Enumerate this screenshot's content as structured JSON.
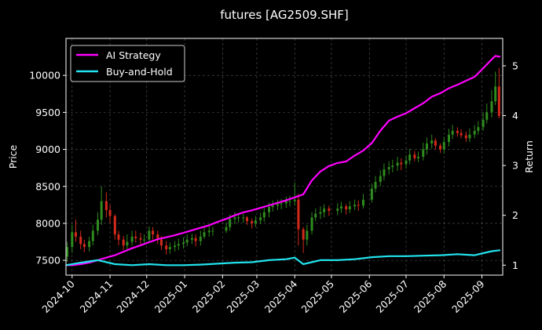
{
  "chart_data": {
    "type": "line",
    "title": "futures [AG2509.SHF]",
    "ylabel": "Price",
    "y2label": "Return",
    "xlim": [
      "2024-09-26",
      "2025-09-18"
    ],
    "ylim": [
      7300,
      10500
    ],
    "y2lim": [
      0.8,
      5.55
    ],
    "x_ticks": [
      "2024-10",
      "2024-11",
      "2024-12",
      "2025-01",
      "2025-02",
      "2025-03",
      "2025-04",
      "2025-05",
      "2025-06",
      "2025-07",
      "2025-08",
      "2025-09"
    ],
    "y_ticks": [
      7500,
      8000,
      8500,
      9000,
      9500,
      10000
    ],
    "y2_ticks": [
      1,
      2,
      3,
      4,
      5
    ],
    "grid": true,
    "legend_position": "top-left",
    "colors": {
      "background": "#000000",
      "axes": "#ffffff",
      "grid": "#555555",
      "up_candle": "#2e8b1e",
      "down_candle": "#d42a1c",
      "ai_strategy": "#ff00ff",
      "buy_and_hold": "#22e3ee"
    },
    "price_series": {
      "name": "AG2509.SHF",
      "x": [
        "2024-09-27",
        "2024-10-01",
        "2024-10-04",
        "2024-10-08",
        "2024-10-11",
        "2024-10-15",
        "2024-10-18",
        "2024-10-22",
        "2024-10-25",
        "2024-10-29",
        "2024-11-01",
        "2024-11-05",
        "2024-11-08",
        "2024-11-12",
        "2024-11-15",
        "2024-11-19",
        "2024-11-22",
        "2024-11-26",
        "2024-11-29",
        "2024-12-03",
        "2024-12-06",
        "2024-12-10",
        "2024-12-13",
        "2024-12-17",
        "2024-12-20",
        "2024-12-24",
        "2024-12-27",
        "2024-12-31",
        "2025-01-03",
        "2025-01-07",
        "2025-01-10",
        "2025-01-14",
        "2025-01-17",
        "2025-01-21",
        "2025-01-24",
        "2025-02-04",
        "2025-02-07",
        "2025-02-11",
        "2025-02-14",
        "2025-02-18",
        "2025-02-21",
        "2025-02-25",
        "2025-02-28",
        "2025-03-04",
        "2025-03-07",
        "2025-03-11",
        "2025-03-14",
        "2025-03-18",
        "2025-03-21",
        "2025-03-25",
        "2025-03-28",
        "2025-04-01",
        "2025-04-04",
        "2025-04-08",
        "2025-04-11",
        "2025-04-15",
        "2025-04-18",
        "2025-04-22",
        "2025-04-25",
        "2025-04-29",
        "2025-05-06",
        "2025-05-09",
        "2025-05-13",
        "2025-05-16",
        "2025-05-20",
        "2025-05-23",
        "2025-05-27",
        "2025-06-03",
        "2025-06-06",
        "2025-06-10",
        "2025-06-13",
        "2025-06-17",
        "2025-06-20",
        "2025-06-24",
        "2025-06-27",
        "2025-07-01",
        "2025-07-04",
        "2025-07-08",
        "2025-07-11",
        "2025-07-15",
        "2025-07-18",
        "2025-07-22",
        "2025-07-25",
        "2025-07-29",
        "2025-08-01",
        "2025-08-05",
        "2025-08-08",
        "2025-08-12",
        "2025-08-15",
        "2025-08-19",
        "2025-08-22",
        "2025-08-26",
        "2025-08-29",
        "2025-09-02",
        "2025-09-05",
        "2025-09-09",
        "2025-09-12",
        "2025-09-15"
      ],
      "open": [
        7550,
        7680,
        7880,
        7820,
        7720,
        7680,
        7760,
        7900,
        8050,
        8300,
        8180,
        8100,
        7850,
        7780,
        7700,
        7750,
        7820,
        7800,
        7780,
        7780,
        7900,
        7850,
        7780,
        7700,
        7650,
        7680,
        7700,
        7720,
        7740,
        7780,
        7800,
        7760,
        7820,
        7880,
        7900,
        7900,
        7950,
        8060,
        8080,
        8080,
        8080,
        8030,
        8000,
        8040,
        8080,
        8150,
        8220,
        8240,
        8260,
        8270,
        8300,
        8300,
        8320,
        7920,
        7780,
        7900,
        8080,
        8130,
        8150,
        8200,
        8170,
        8200,
        8230,
        8190,
        8230,
        8250,
        8240,
        8320,
        8470,
        8560,
        8640,
        8730,
        8760,
        8780,
        8820,
        8800,
        8850,
        8930,
        8880,
        8900,
        9000,
        9080,
        9120,
        9050,
        9000,
        9100,
        9200,
        9250,
        9220,
        9190,
        9150,
        9200,
        9250,
        9300,
        9400,
        9500,
        9650,
        9850
      ],
      "close": [
        7680,
        7880,
        7820,
        7720,
        7680,
        7760,
        7900,
        8050,
        8300,
        8180,
        8100,
        7850,
        7780,
        7700,
        7750,
        7820,
        7800,
        7780,
        7780,
        7900,
        7850,
        7780,
        7700,
        7650,
        7680,
        7700,
        7720,
        7740,
        7780,
        7800,
        7760,
        7820,
        7880,
        7900,
        7900,
        7950,
        8060,
        8080,
        8080,
        8080,
        8030,
        8000,
        8040,
        8080,
        8150,
        8220,
        8240,
        8260,
        8270,
        8300,
        8300,
        8320,
        7920,
        7780,
        7900,
        8080,
        8130,
        8150,
        8200,
        8170,
        8200,
        8230,
        8190,
        8230,
        8250,
        8240,
        8320,
        8470,
        8560,
        8640,
        8730,
        8760,
        8780,
        8820,
        8800,
        8850,
        8930,
        8880,
        8900,
        9000,
        9080,
        9120,
        9050,
        9000,
        9100,
        9200,
        9250,
        9220,
        9190,
        9150,
        9200,
        9250,
        9300,
        9400,
        9500,
        9650,
        9850,
        9450
      ],
      "high": [
        7750,
        7980,
        8050,
        7900,
        7780,
        7820,
        7980,
        8150,
        8500,
        8420,
        8250,
        8120,
        7900,
        7830,
        7850,
        7900,
        7900,
        7870,
        7850,
        7960,
        7950,
        7900,
        7830,
        7760,
        7740,
        7760,
        7790,
        7810,
        7850,
        7860,
        7850,
        7900,
        7950,
        7960,
        7950,
        8010,
        8120,
        8150,
        8140,
        8130,
        8100,
        8070,
        8100,
        8140,
        8210,
        8280,
        8310,
        8320,
        8330,
        8360,
        8370,
        8550,
        8400,
        7950,
        7980,
        8150,
        8200,
        8230,
        8260,
        8240,
        8270,
        8290,
        8260,
        8300,
        8320,
        8310,
        8400,
        8540,
        8640,
        8720,
        8810,
        8840,
        8860,
        8900,
        8880,
        8920,
        9010,
        8980,
        8970,
        9090,
        9160,
        9200,
        9150,
        9080,
        9170,
        9280,
        9330,
        9300,
        9270,
        9240,
        9280,
        9330,
        9380,
        9500,
        9620,
        9800,
        10050,
        10100
      ],
      "low": [
        7480,
        7600,
        7750,
        7650,
        7610,
        7620,
        7700,
        7840,
        7980,
        8080,
        8000,
        7780,
        7700,
        7640,
        7640,
        7700,
        7740,
        7720,
        7710,
        7730,
        7780,
        7720,
        7640,
        7580,
        7590,
        7620,
        7640,
        7660,
        7690,
        7720,
        7690,
        7700,
        7790,
        7820,
        7830,
        7870,
        7900,
        7990,
        8010,
        8010,
        7980,
        7930,
        7950,
        7990,
        8020,
        8080,
        8160,
        8180,
        8190,
        8210,
        8230,
        8240,
        7700,
        7600,
        7700,
        7850,
        8030,
        8060,
        8080,
        8100,
        8110,
        8140,
        8120,
        8140,
        8180,
        8170,
        8200,
        8280,
        8420,
        8500,
        8580,
        8660,
        8690,
        8710,
        8720,
        8740,
        8800,
        8840,
        8830,
        8850,
        8930,
        9010,
        9000,
        8950,
        8940,
        9040,
        9140,
        9170,
        9150,
        9100,
        9100,
        9150,
        9200,
        9250,
        9350,
        9430,
        9600,
        9420
      ]
    },
    "series": [
      {
        "name": "AI Strategy",
        "x": [
          "2024-09-26",
          "2024-10-01",
          "2024-10-08",
          "2024-10-15",
          "2024-10-22",
          "2024-10-29",
          "2024-11-05",
          "2024-11-12",
          "2024-11-19",
          "2024-11-26",
          "2024-12-03",
          "2024-12-10",
          "2024-12-17",
          "2024-12-24",
          "2024-12-31",
          "2025-01-07",
          "2025-01-14",
          "2025-01-21",
          "2025-01-28",
          "2025-02-04",
          "2025-02-11",
          "2025-02-18",
          "2025-02-25",
          "2025-03-04",
          "2025-03-11",
          "2025-03-18",
          "2025-03-25",
          "2025-04-01",
          "2025-04-08",
          "2025-04-15",
          "2025-04-22",
          "2025-04-29",
          "2025-05-06",
          "2025-05-13",
          "2025-05-20",
          "2025-05-27",
          "2025-06-03",
          "2025-06-10",
          "2025-06-17",
          "2025-06-24",
          "2025-07-01",
          "2025-07-08",
          "2025-07-15",
          "2025-07-22",
          "2025-07-29",
          "2025-08-05",
          "2025-08-12",
          "2025-08-19",
          "2025-08-26",
          "2025-09-02",
          "2025-09-09",
          "2025-09-12",
          "2025-09-16"
        ],
        "values": [
          1.0,
          1.0,
          1.02,
          1.05,
          1.1,
          1.15,
          1.2,
          1.27,
          1.34,
          1.4,
          1.46,
          1.52,
          1.56,
          1.6,
          1.65,
          1.7,
          1.75,
          1.8,
          1.87,
          1.93,
          2.0,
          2.06,
          2.1,
          2.15,
          2.2,
          2.25,
          2.3,
          2.36,
          2.42,
          2.7,
          2.88,
          2.99,
          3.05,
          3.08,
          3.2,
          3.3,
          3.45,
          3.7,
          3.9,
          3.98,
          4.05,
          4.15,
          4.25,
          4.38,
          4.45,
          4.55,
          4.62,
          4.7,
          4.78,
          4.95,
          5.13,
          5.2,
          5.18
        ]
      },
      {
        "name": "Buy-and-Hold",
        "x": [
          "2024-09-26",
          "2024-10-08",
          "2024-10-22",
          "2024-11-05",
          "2024-11-19",
          "2024-12-03",
          "2024-12-17",
          "2024-12-31",
          "2025-01-14",
          "2025-01-28",
          "2025-02-11",
          "2025-02-25",
          "2025-03-11",
          "2025-03-25",
          "2025-04-01",
          "2025-04-08",
          "2025-04-22",
          "2025-05-06",
          "2025-05-20",
          "2025-06-03",
          "2025-06-17",
          "2025-07-01",
          "2025-07-15",
          "2025-07-29",
          "2025-08-12",
          "2025-08-26",
          "2025-09-09",
          "2025-09-16"
        ],
        "values": [
          1.0,
          1.05,
          1.1,
          1.02,
          1.0,
          1.02,
          1.0,
          1.0,
          1.01,
          1.03,
          1.05,
          1.06,
          1.1,
          1.12,
          1.15,
          1.02,
          1.1,
          1.1,
          1.12,
          1.16,
          1.18,
          1.18,
          1.19,
          1.2,
          1.22,
          1.2,
          1.28,
          1.3
        ]
      }
    ]
  }
}
